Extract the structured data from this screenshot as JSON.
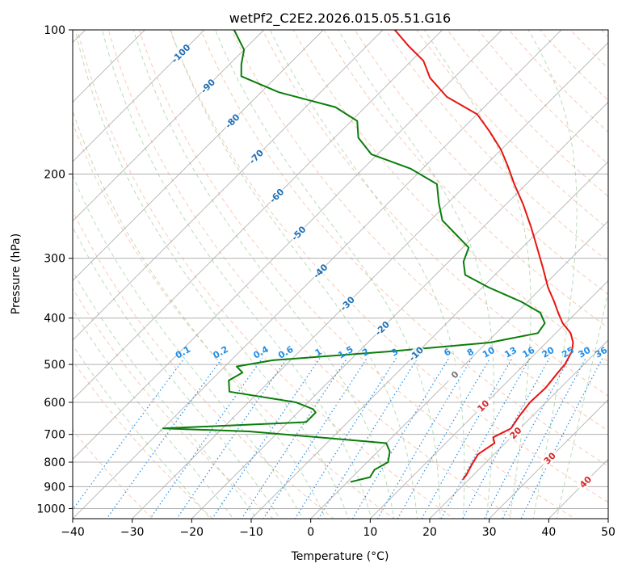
{
  "chart_data": {
    "type": "line",
    "title": "wetPf2_C2E2.2026.015.05.51.G16",
    "xlabel": "Temperature (°C)",
    "ylabel": "Pressure (hPa)",
    "xlim": [
      -40,
      50
    ],
    "ylim": [
      1050,
      100
    ],
    "y_scale": "log",
    "x_ticks": [
      -40,
      -30,
      -20,
      -10,
      0,
      10,
      20,
      30,
      40,
      50
    ],
    "x_tick_labels": [
      "−40",
      "−30",
      "−20",
      "−10",
      "0",
      "10",
      "20",
      "30",
      "40",
      "50"
    ],
    "y_ticks": [
      100,
      200,
      300,
      400,
      500,
      600,
      700,
      800,
      900,
      1000
    ],
    "y_tick_labels": [
      "100",
      "200",
      "300",
      "400",
      "500",
      "600",
      "700",
      "800",
      "900",
      "1000"
    ],
    "grid": true,
    "skew": 45,
    "colors": {
      "temperature": "#e8140f",
      "dewpoint": "#0a7d0a",
      "isotherm": "#999999",
      "dry_adiabat": "#f4a582",
      "moist_adiabat": "#7fbf7b",
      "mixing_ratio": "#1f8ee8",
      "isotherm_label": "#1f6fb4",
      "freezing_label": "#777777",
      "warm_label": "#d62728"
    },
    "isotherm_labels": [
      {
        "text": "-100",
        "t": -100,
        "p": 112
      },
      {
        "text": "-90",
        "t": -90,
        "p": 131
      },
      {
        "text": "-80",
        "t": -80,
        "p": 155
      },
      {
        "text": "-70",
        "t": -70,
        "p": 184
      },
      {
        "text": "-60",
        "t": -60,
        "p": 222
      },
      {
        "text": "-50",
        "t": -50,
        "p": 266
      },
      {
        "text": "-40",
        "t": -40,
        "p": 319
      },
      {
        "text": "-30",
        "t": -30,
        "p": 373
      },
      {
        "text": "-20",
        "t": -20,
        "p": 420
      },
      {
        "text": "-10",
        "t": -10,
        "p": 475
      },
      {
        "text": "0",
        "t": 0,
        "p": 525
      },
      {
        "text": "10",
        "t": 10,
        "p": 610
      },
      {
        "text": "20",
        "t": 20,
        "p": 695
      },
      {
        "text": "30",
        "t": 30,
        "p": 785
      },
      {
        "text": "40",
        "t": 40,
        "p": 880
      }
    ],
    "mixing_ratio_lines": [
      "0.1",
      "0.2",
      "0.4",
      "0.6",
      "1",
      "1.5",
      "2",
      "3",
      "4",
      "6",
      "8",
      "10",
      "13",
      "16",
      "20",
      "25",
      "30",
      "36"
    ],
    "series": [
      {
        "name": "Temperature",
        "points": [
          [
            19.0,
            870
          ],
          [
            18.8,
            850
          ],
          [
            18.0,
            810
          ],
          [
            17.3,
            770
          ],
          [
            18.2,
            730
          ],
          [
            17.0,
            710
          ],
          [
            18.5,
            680
          ],
          [
            17.8,
            640
          ],
          [
            17.3,
            600
          ],
          [
            17.5,
            560
          ],
          [
            17.0,
            520
          ],
          [
            16.8,
            500
          ],
          [
            15.8,
            470
          ],
          [
            14.5,
            450
          ],
          [
            12.5,
            430
          ],
          [
            9.5,
            410
          ],
          [
            7.0,
            390
          ],
          [
            4.5,
            370
          ],
          [
            1.0,
            345
          ],
          [
            -3.0,
            315
          ],
          [
            -7.5,
            285
          ],
          [
            -12.0,
            258
          ],
          [
            -17.0,
            232
          ],
          [
            -22.0,
            210
          ],
          [
            -26.0,
            193
          ],
          [
            -30.0,
            178
          ],
          [
            -35.0,
            163
          ],
          [
            -40.0,
            150
          ],
          [
            -48.0,
            138
          ],
          [
            -54.0,
            126
          ],
          [
            -58.0,
            116
          ],
          [
            -63.0,
            108
          ],
          [
            -68.0,
            100
          ]
        ]
      },
      {
        "name": "Dewpoint",
        "points": [
          [
            0.5,
            880
          ],
          [
            3.0,
            860
          ],
          [
            2.5,
            830
          ],
          [
            3.5,
            800
          ],
          [
            2.0,
            760
          ],
          [
            0.0,
            730
          ],
          [
            -25.0,
            690
          ],
          [
            -40.0,
            680
          ],
          [
            -17.0,
            660
          ],
          [
            -17.0,
            640
          ],
          [
            -17.0,
            630
          ],
          [
            -18.0,
            620
          ],
          [
            -22.0,
            600
          ],
          [
            -35.0,
            570
          ],
          [
            -37.0,
            540
          ],
          [
            -36.0,
            520
          ],
          [
            -38.0,
            505
          ],
          [
            -33.0,
            490
          ],
          [
            -15.0,
            470
          ],
          [
            0.5,
            450
          ],
          [
            7.0,
            430
          ],
          [
            6.5,
            410
          ],
          [
            4.0,
            390
          ],
          [
            -1.0,
            370
          ],
          [
            -9.0,
            345
          ],
          [
            -15.0,
            325
          ],
          [
            -17.5,
            305
          ],
          [
            -19.0,
            285
          ],
          [
            -24.0,
            265
          ],
          [
            -28.0,
            250
          ],
          [
            -31.5,
            230
          ],
          [
            -35.0,
            210
          ],
          [
            -42.0,
            195
          ],
          [
            -51.0,
            182
          ],
          [
            -56.0,
            168
          ],
          [
            -59.0,
            155
          ],
          [
            -65.0,
            145
          ],
          [
            -77.0,
            135
          ],
          [
            -86.0,
            125
          ],
          [
            -88.0,
            118
          ],
          [
            -90.0,
            110
          ],
          [
            -95.0,
            100
          ]
        ]
      }
    ]
  }
}
